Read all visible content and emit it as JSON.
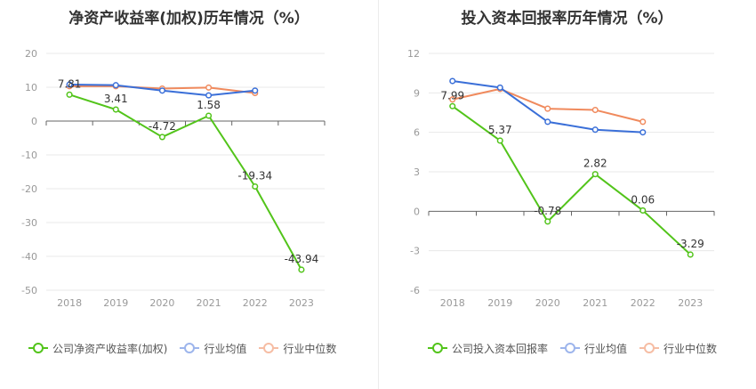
{
  "charts": [
    {
      "title": "净资产收益率(加权)历年情况（%）",
      "legend": [
        "公司净资产收益率(加权)",
        "行业均值",
        "行业中位数"
      ]
    },
    {
      "title": "投入资本回报率历年情况（%）",
      "legend": [
        "公司投入资本回报率",
        "行业均值",
        "行业中位数"
      ]
    }
  ],
  "colors": {
    "company": "#52c41a",
    "industry_avg": "#3a6fd8",
    "industry_median": "#f08a5d",
    "grid": "#e8e8e8",
    "axis": "#999999",
    "tick_text": "#999999",
    "label_text": "#333333"
  },
  "chart_data": [
    {
      "type": "line",
      "title": "净资产收益率(加权)历年情况（%）",
      "categories": [
        "2018",
        "2019",
        "2020",
        "2021",
        "2022",
        "2023"
      ],
      "ylim": [
        -50,
        20
      ],
      "yticks": [
        20,
        10,
        0,
        -10,
        -20,
        -30,
        -40,
        -50
      ],
      "grid": true,
      "legend_position": "bottom",
      "series": [
        {
          "name": "公司净资产收益率(加权)",
          "color": "#52c41a",
          "values": [
            7.81,
            3.41,
            -4.72,
            1.58,
            -19.34,
            -43.94
          ],
          "data_labels": [
            "7.81",
            "3.41",
            "-4.72",
            "1.58",
            "-19.34",
            "-43.94"
          ]
        },
        {
          "name": "行业均值",
          "color": "#3a6fd8",
          "values": [
            10.8,
            10.6,
            9.0,
            7.6,
            9.0,
            null
          ]
        },
        {
          "name": "行业中位数",
          "color": "#f08a5d",
          "values": [
            10.3,
            10.3,
            9.6,
            9.9,
            8.3,
            null
          ]
        }
      ]
    },
    {
      "type": "line",
      "title": "投入资本回报率历年情况（%）",
      "categories": [
        "2018",
        "2019",
        "2020",
        "2021",
        "2022",
        "2023"
      ],
      "ylim": [
        -6,
        12
      ],
      "yticks": [
        12,
        9,
        6,
        3,
        0,
        -3,
        -6
      ],
      "grid": true,
      "legend_position": "bottom",
      "series": [
        {
          "name": "公司投入资本回报率",
          "color": "#52c41a",
          "values": [
            7.99,
            5.37,
            -0.78,
            2.82,
            0.06,
            -3.29
          ],
          "data_labels": [
            "7.99",
            "5.37",
            "-0.78",
            "2.82",
            "0.06",
            "-3.29"
          ]
        },
        {
          "name": "行业均值",
          "color": "#3a6fd8",
          "values": [
            9.9,
            9.4,
            6.8,
            6.2,
            6.0,
            null
          ]
        },
        {
          "name": "行业中位数",
          "color": "#f08a5d",
          "values": [
            8.5,
            9.3,
            7.8,
            7.7,
            6.8,
            null
          ]
        }
      ]
    }
  ]
}
